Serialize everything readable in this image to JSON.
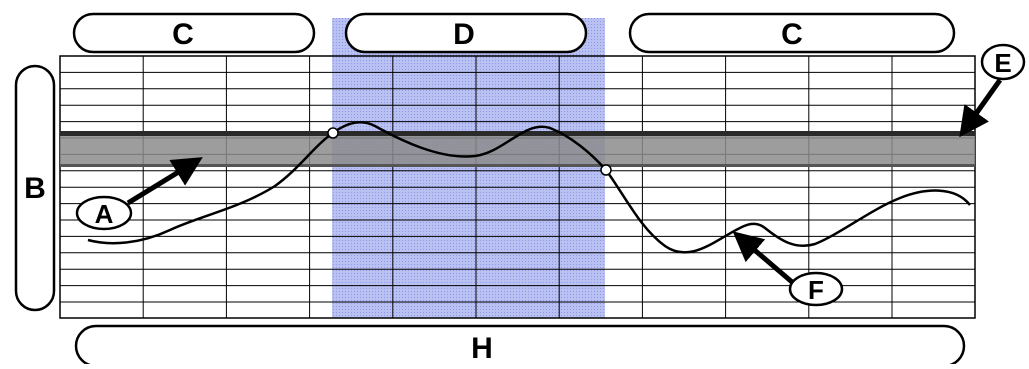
{
  "labels": {
    "top_left": "C",
    "top_middle": "D",
    "top_right": "C",
    "left": "B",
    "bottom": "H",
    "callout_a": "A",
    "callout_e": "E",
    "callout_f": "F"
  },
  "colors": {
    "highlight": "#aab2ee",
    "band": "#8c8c8c",
    "band_edge": "#2a2a2a",
    "line": "#000000",
    "grid": "#000000"
  }
}
